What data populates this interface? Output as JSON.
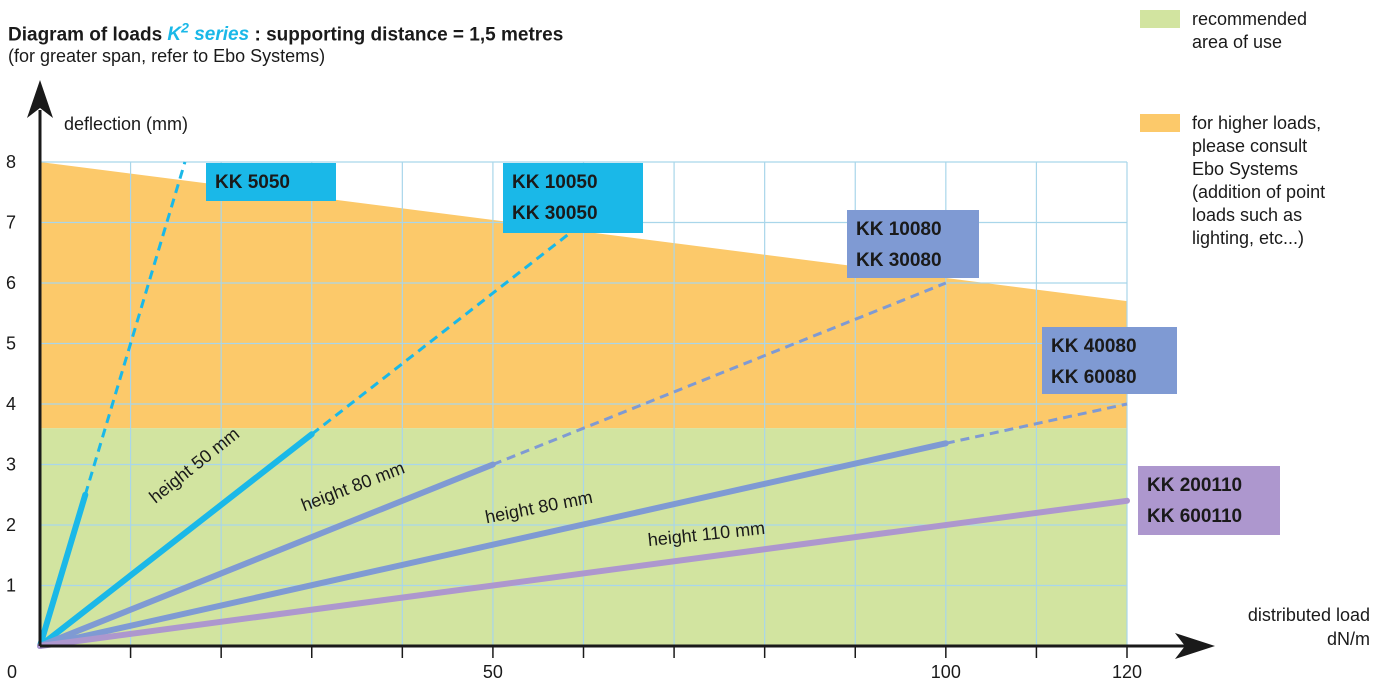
{
  "header": {
    "title_prefix": "Diagram of loads ",
    "title_series_base": "K",
    "title_series_sup": "2",
    "title_series_word": " series",
    "title_suffix": " : supporting distance = 1,5 metres",
    "subtitle": "(for greater span, refer to Ebo Systems)"
  },
  "legend": {
    "items": [
      {
        "label": "recommended area of use",
        "color": "#d2e4a0"
      },
      {
        "label": "for higher loads, please consult Ebo Systems (addition of point loads such as lighting, etc...)",
        "color": "#fcc96a"
      }
    ]
  },
  "colors": {
    "green": "#d2e4a0",
    "orange": "#fcc96a",
    "grid": "#a9d6ea",
    "cyan": "#1ab8e8",
    "blue": "#7f9ad3",
    "purple": "#ad97ce",
    "axis": "#1a1a1a"
  },
  "chart_data": {
    "type": "line",
    "xlabel": "distributed load dN/m",
    "ylabel": "deflection (mm)",
    "xlim": [
      0,
      120
    ],
    "ylim": [
      0,
      8
    ],
    "x_tick_labels": [
      "0",
      "50",
      "100",
      "120"
    ],
    "y_tick_labels": [
      "1",
      "2",
      "3",
      "4",
      "5",
      "6",
      "7",
      "8"
    ],
    "recommended_area": {
      "y_max": 3.6
    },
    "higher_loads_area": {
      "top_line": [
        [
          0,
          8
        ],
        [
          120,
          5.7
        ]
      ]
    },
    "series": [
      {
        "name": "KK 5050",
        "color": "cyan",
        "solid": [
          [
            0,
            0
          ],
          [
            5,
            2.5
          ]
        ],
        "dashed": [
          [
            5,
            2.5
          ],
          [
            16,
            8
          ]
        ],
        "height_label": ""
      },
      {
        "name": "KK 10050 / KK 30050",
        "color": "cyan",
        "solid": [
          [
            0,
            0
          ],
          [
            30,
            3.5
          ]
        ],
        "dashed": [
          [
            30,
            3.5
          ],
          [
            60,
            7
          ]
        ],
        "height_label": "height 50 mm"
      },
      {
        "name": "KK 10080 / KK 30080",
        "color": "blue",
        "solid": [
          [
            0,
            0
          ],
          [
            50,
            3
          ]
        ],
        "dashed": [
          [
            50,
            3
          ],
          [
            100,
            6
          ]
        ],
        "height_label": "height 80 mm"
      },
      {
        "name": "KK 40080 / KK 60080",
        "color": "blue",
        "solid": [
          [
            0,
            0
          ],
          [
            100,
            3.35
          ]
        ],
        "dashed": [
          [
            100,
            3.35
          ],
          [
            120,
            4
          ]
        ],
        "height_label": "height 80 mm"
      },
      {
        "name": "KK 200110 / KK 600110",
        "color": "purple",
        "solid": [
          [
            0,
            0
          ],
          [
            120,
            2.4
          ]
        ],
        "dashed": [],
        "height_label": "height 110 mm"
      }
    ],
    "series_labels": [
      {
        "lines": [
          "KK 5050"
        ],
        "color": "cyan"
      },
      {
        "lines": [
          "KK 10050",
          "KK 30050"
        ],
        "color": "cyan"
      },
      {
        "lines": [
          "KK 10080",
          "KK 30080"
        ],
        "color": "blue"
      },
      {
        "lines": [
          "KK 40080",
          "KK 60080"
        ],
        "color": "blue"
      },
      {
        "lines": [
          "KK 200110",
          "KK 600110"
        ],
        "color": "purple"
      }
    ]
  }
}
